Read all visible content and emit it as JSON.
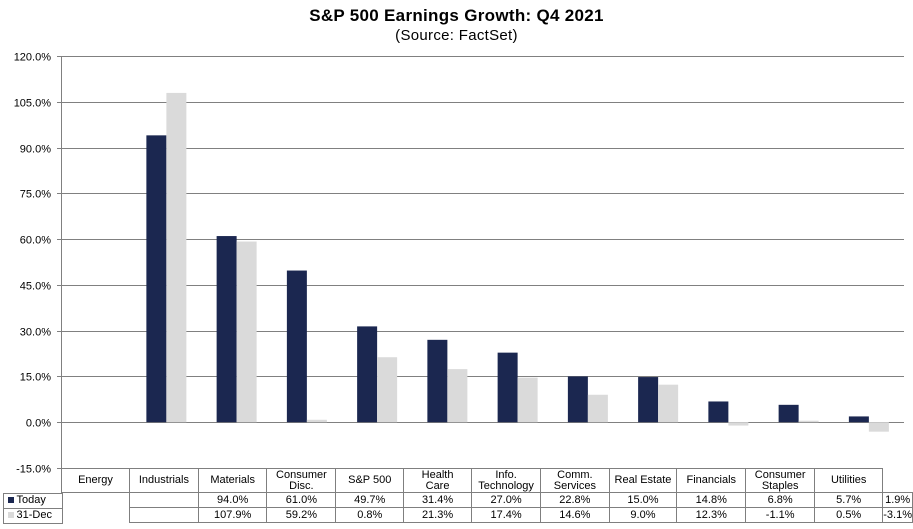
{
  "chart_data": {
    "type": "bar",
    "title": "S&P 500 Earnings Growth: Q4 2021",
    "subtitle": "(Source: FactSet)",
    "categories": [
      "Energy",
      "Industrials",
      "Materials",
      "Consumer Disc.",
      "S&P 500",
      "Health Care",
      "Info. Technology",
      "Comm. Services",
      "Real Estate",
      "Financials",
      "Consumer Staples",
      "Utilities"
    ],
    "category_lines": [
      [
        "Energy"
      ],
      [
        "Industrials"
      ],
      [
        "Materials"
      ],
      [
        "Consumer",
        "Disc."
      ],
      [
        "S&P 500"
      ],
      [
        "Health",
        "Care"
      ],
      [
        "Info.",
        "Technology"
      ],
      [
        "Comm.",
        "Services"
      ],
      [
        "Real Estate"
      ],
      [
        "Financials"
      ],
      [
        "Consumer",
        "Staples"
      ],
      [
        "Utilities"
      ]
    ],
    "series": [
      {
        "name": "Today",
        "color": "#1b2750",
        "values": [
          null,
          94.0,
          61.0,
          49.7,
          31.4,
          27.0,
          22.8,
          15.0,
          14.8,
          6.8,
          5.7,
          1.9
        ],
        "labels": [
          "",
          "94.0%",
          "61.0%",
          "49.7%",
          "31.4%",
          "27.0%",
          "22.8%",
          "15.0%",
          "14.8%",
          "6.8%",
          "5.7%",
          "1.9%"
        ]
      },
      {
        "name": "31-Dec",
        "color": "#dadada",
        "values": [
          null,
          107.9,
          59.2,
          0.8,
          21.3,
          17.4,
          14.6,
          9.0,
          12.3,
          -1.1,
          0.5,
          -3.1
        ],
        "labels": [
          "",
          "107.9%",
          "59.2%",
          "0.8%",
          "21.3%",
          "17.4%",
          "14.6%",
          "9.0%",
          "12.3%",
          "-1.1%",
          "0.5%",
          "-3.1%"
        ]
      }
    ],
    "ylim": [
      -15,
      120
    ],
    "yticks": [
      -15,
      0,
      15,
      30,
      45,
      60,
      75,
      90,
      105,
      120
    ],
    "ytick_labels": [
      "-15.0%",
      "0.0%",
      "15.0%",
      "30.0%",
      "45.0%",
      "60.0%",
      "75.0%",
      "90.0%",
      "105.0%",
      "120.0%"
    ],
    "grid": true,
    "legend": "data-table"
  }
}
